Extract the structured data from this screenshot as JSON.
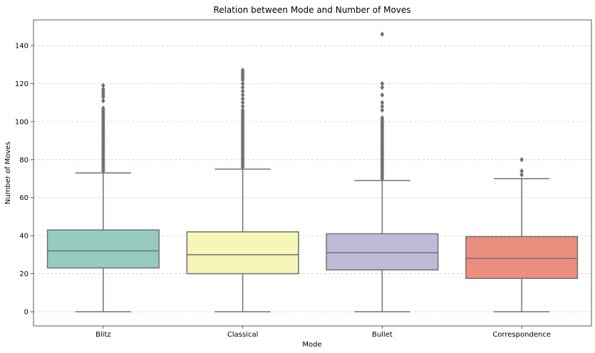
{
  "chart_data": {
    "type": "box",
    "title": "Relation between Mode and Number of Moves",
    "xlabel": "Mode",
    "ylabel": "Number of Moves",
    "ylim": [
      -7.5,
      153.5
    ],
    "yticks": [
      0,
      20,
      40,
      60,
      80,
      100,
      120,
      140
    ],
    "grid": "horizontal dashed",
    "categories": [
      "Blitz",
      "Classical",
      "Bullet",
      "Correspondence"
    ],
    "boxes": [
      {
        "category": "Blitz",
        "color": "#95cbbf",
        "whisker_low": 0,
        "q1": 23,
        "median": 32,
        "q3": 43,
        "whisker_high": 73,
        "outliers": [
          74,
          75,
          76,
          77,
          78,
          79,
          80,
          81,
          82,
          83,
          84,
          85,
          86,
          87,
          88,
          89,
          90,
          91,
          92,
          93,
          94,
          95,
          96,
          97,
          98,
          99,
          100,
          101,
          102,
          103,
          104,
          105,
          106,
          107,
          111,
          113,
          114,
          115,
          116,
          117,
          119
        ]
      },
      {
        "category": "Classical",
        "color": "#f6f6b9",
        "whisker_low": 0,
        "q1": 20,
        "median": 30,
        "q3": 42,
        "whisker_high": 75,
        "outliers": [
          76,
          77,
          78,
          79,
          80,
          81,
          82,
          83,
          84,
          85,
          86,
          87,
          88,
          89,
          90,
          91,
          92,
          93,
          94,
          95,
          96,
          97,
          98,
          99,
          100,
          101,
          102,
          103,
          104,
          105,
          106,
          108,
          110,
          112,
          114,
          116,
          118,
          120,
          122,
          123,
          124,
          125,
          126,
          127
        ]
      },
      {
        "category": "Bullet",
        "color": "#bfbbd6",
        "whisker_low": 0,
        "q1": 22,
        "median": 31,
        "q3": 41,
        "whisker_high": 69,
        "outliers": [
          70,
          71,
          72,
          73,
          74,
          75,
          76,
          77,
          78,
          79,
          80,
          81,
          82,
          83,
          84,
          85,
          86,
          87,
          88,
          89,
          90,
          91,
          92,
          93,
          94,
          95,
          96,
          97,
          98,
          99,
          100,
          101,
          102,
          106,
          108,
          110,
          114,
          118,
          120,
          146
        ]
      },
      {
        "category": "Correspondence",
        "color": "#eb8e80",
        "whisker_low": 0,
        "q1": 17.5,
        "median": 28,
        "q3": 39.5,
        "whisker_high": 70,
        "outliers": [
          72,
          74,
          80
        ]
      }
    ]
  }
}
